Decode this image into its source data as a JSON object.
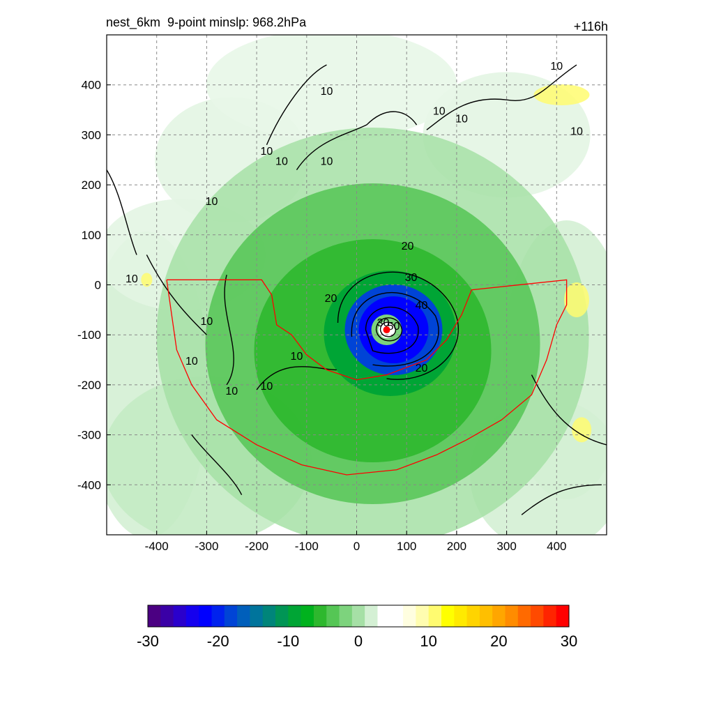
{
  "chart_data": {
    "type": "heatmap",
    "title": "nest_6km  9-point minslp: 968.2hPa",
    "time_label": "+116h",
    "x_ticks": [
      -400,
      -300,
      -200,
      -100,
      0,
      100,
      200,
      300,
      400
    ],
    "y_ticks": [
      400,
      300,
      200,
      100,
      0,
      -100,
      -200,
      -300,
      -400
    ],
    "xlim": [
      -500,
      500
    ],
    "ylim": [
      -500,
      500
    ],
    "grid": true,
    "grid_style": "dashed",
    "colorbar": {
      "ticks": [
        -30,
        -20,
        -10,
        0,
        10,
        20,
        30
      ],
      "range": [
        -30,
        30
      ],
      "colors": [
        "#4b0082",
        "#3a00a6",
        "#2a00cc",
        "#1500ee",
        "#0000ff",
        "#0022ee",
        "#0044d6",
        "#005fbb",
        "#00749c",
        "#00857a",
        "#009555",
        "#00a535",
        "#00b21e",
        "#2eb82e",
        "#55c655",
        "#7dd37d",
        "#a6e0a6",
        "#d4f0d4",
        "#ffffff",
        "#ffffff",
        "#fffee0",
        "#fffdb0",
        "#fffb70",
        "#ffff00",
        "#ffea00",
        "#ffd400",
        "#ffbf00",
        "#ffa600",
        "#ff8c00",
        "#ff6a00",
        "#ff4a00",
        "#ff2400",
        "#ff0000"
      ]
    },
    "contour_labels": [
      "10",
      "10",
      "10",
      "10",
      "10",
      "10",
      "10",
      "10",
      "10",
      "10",
      "10",
      "10",
      "10",
      "10",
      "10",
      "20",
      "20",
      "20",
      "30",
      "30",
      "40",
      "50"
    ],
    "center_marker": {
      "x": 60,
      "y": -90,
      "color": "#ff0000"
    },
    "region_outline_color": "#ff0000"
  }
}
